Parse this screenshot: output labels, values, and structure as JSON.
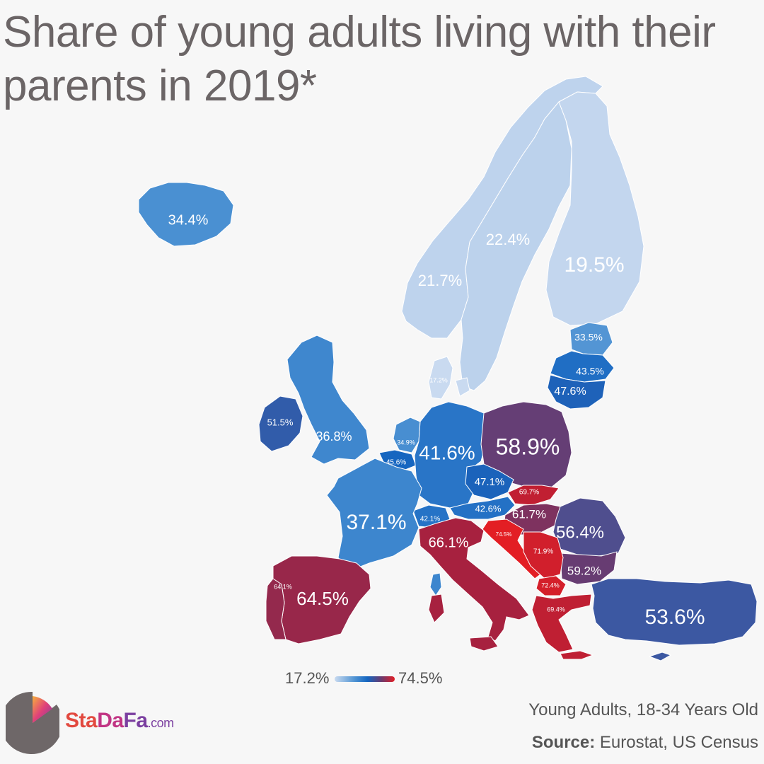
{
  "title": "Share of young adults living with their parents in 2019*",
  "legend": {
    "min_label": "17.2%",
    "max_label": "74.5%"
  },
  "brand": {
    "part1": "Sta",
    "part2": "Da",
    "part3": "Fa",
    "suffix": ".com"
  },
  "footnote": "Young Adults, 18-34 Years Old",
  "source": {
    "label": "Source:",
    "text": "Eurostat, US Census"
  },
  "colors": {
    "background": "#f7f7f7",
    "scale_low": "#c9daf0",
    "scale_mid": "#1565c0",
    "scale_high": "#e31e24"
  },
  "chart_data": {
    "type": "choropleth",
    "title": "Share of young adults living with their parents in 2019*",
    "unit": "%",
    "range": [
      17.2,
      74.5
    ],
    "regions": [
      {
        "name": "Iceland",
        "label": "34.4%",
        "value": 34.4
      },
      {
        "name": "Norway",
        "label": "21.7%",
        "value": 21.7
      },
      {
        "name": "Sweden",
        "label": "22.4%",
        "value": 22.4
      },
      {
        "name": "Finland",
        "label": "19.5%",
        "value": 19.5
      },
      {
        "name": "Denmark",
        "label": "17.2%",
        "value": 17.2
      },
      {
        "name": "Estonia",
        "label": "33.5%",
        "value": 33.5
      },
      {
        "name": "Latvia",
        "label": "43.5%",
        "value": 43.5
      },
      {
        "name": "Lithuania",
        "label": "47.6%",
        "value": 47.6
      },
      {
        "name": "Ireland",
        "label": "51.5%",
        "value": 51.5
      },
      {
        "name": "United Kingdom",
        "label": "36.8%",
        "value": 36.8
      },
      {
        "name": "Netherlands",
        "label": "34.9%",
        "value": 34.9
      },
      {
        "name": "Belgium",
        "label": "45.6%",
        "value": 45.6
      },
      {
        "name": "Germany",
        "label": "41.6%",
        "value": 41.6
      },
      {
        "name": "Poland",
        "label": "58.9%",
        "value": 58.9
      },
      {
        "name": "Czechia",
        "label": "47.1%",
        "value": 47.1
      },
      {
        "name": "Slovakia",
        "label": "69.7%",
        "value": 69.7
      },
      {
        "name": "Austria",
        "label": "42.6%",
        "value": 42.6
      },
      {
        "name": "Switzerland",
        "label": "42.1%",
        "value": 42.1
      },
      {
        "name": "Hungary",
        "label": "61.7%",
        "value": 61.7
      },
      {
        "name": "France",
        "label": "37.1%",
        "value": 37.1
      },
      {
        "name": "Italy",
        "label": "66.1%",
        "value": 66.1
      },
      {
        "name": "Croatia",
        "label": "74.5%",
        "value": 74.5
      },
      {
        "name": "Serbia",
        "label": "71.9%",
        "value": 71.9
      },
      {
        "name": "Romania",
        "label": "56.4%",
        "value": 56.4
      },
      {
        "name": "Bulgaria",
        "label": "59.2%",
        "value": 59.2
      },
      {
        "name": "North Macedonia",
        "label": "72.4%",
        "value": 72.4
      },
      {
        "name": "Greece",
        "label": "69.4%",
        "value": 69.4
      },
      {
        "name": "Spain",
        "label": "64.5%",
        "value": 64.5
      },
      {
        "name": "Portugal",
        "label": "64.1%",
        "value": 64.1
      },
      {
        "name": "Turkey",
        "label": "53.6%",
        "value": 53.6
      }
    ]
  }
}
